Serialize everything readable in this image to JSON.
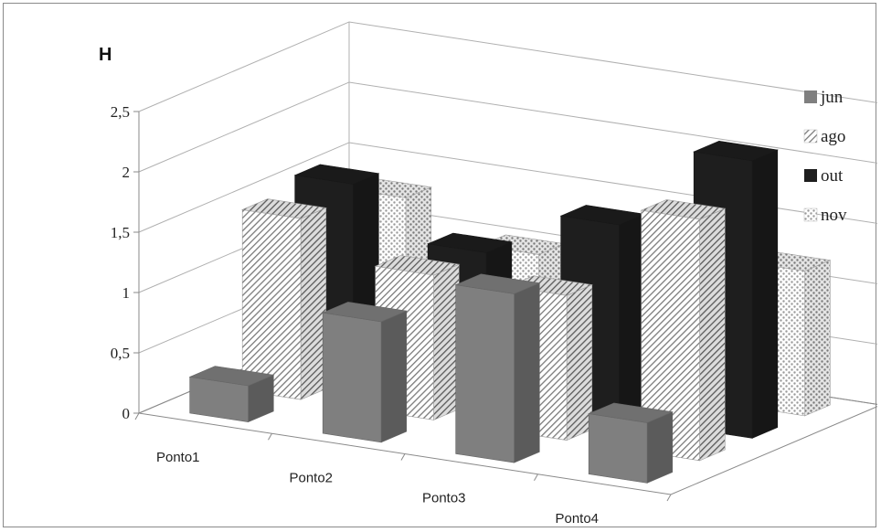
{
  "chart_data": {
    "type": "bar",
    "title": "H",
    "categories": [
      "Ponto1",
      "Ponto2",
      "Ponto3",
      "Ponto4"
    ],
    "series": [
      {
        "name": "jun",
        "values": [
          0.3,
          1.0,
          1.4,
          0.5
        ],
        "color": "#7f7f7f",
        "pattern": "solid"
      },
      {
        "name": "ago",
        "values": [
          1.5,
          1.2,
          1.2,
          2.0
        ],
        "color": "#9a9a9a",
        "pattern": "diagonal"
      },
      {
        "name": "out",
        "values": [
          1.6,
          1.2,
          1.6,
          2.3
        ],
        "color": "#1e1e1e",
        "pattern": "solid"
      },
      {
        "name": "nov",
        "values": [
          1.3,
          1.0,
          0.9,
          1.2
        ],
        "color": "#c0c0c0",
        "pattern": "dotted"
      }
    ],
    "y_ticks": [
      "0",
      "0,5",
      "1",
      "1,5",
      "2",
      "2,5"
    ],
    "ylim": [
      0,
      2.5
    ],
    "legend_position": "right",
    "grid": true
  }
}
